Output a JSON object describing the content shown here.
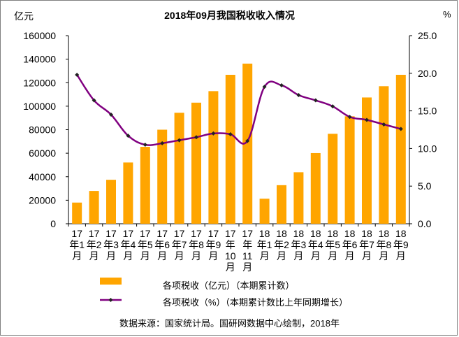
{
  "chart_data": {
    "type": "bar+line",
    "title": "2018年09月我国税收收入情况",
    "ylabel_left": "亿元",
    "ylabel_right": "%",
    "categories": [
      "17年1月",
      "17年2月",
      "17年3月",
      "17年4月",
      "17年5月",
      "17年6月",
      "17年7月",
      "17年8月",
      "17年9月",
      "17年10月",
      "17年11月",
      "18年1月",
      "18年2月",
      "18年3月",
      "18年4月",
      "18年5月",
      "18年6月",
      "18年7月",
      "18年8月",
      "18年9月"
    ],
    "category_labels": [
      [
        "17",
        "年1",
        "月"
      ],
      [
        "17",
        "年2",
        "月"
      ],
      [
        "17",
        "年3",
        "月"
      ],
      [
        "17",
        "年4",
        "月"
      ],
      [
        "17",
        "年5",
        "月"
      ],
      [
        "17",
        "年6",
        "月"
      ],
      [
        "17",
        "年7",
        "月"
      ],
      [
        "17",
        "年8",
        "月"
      ],
      [
        "17",
        "年9",
        "月"
      ],
      [
        "17",
        "年",
        "10",
        "月"
      ],
      [
        "17",
        "年",
        "11",
        "月"
      ],
      [
        "18",
        "年1",
        "月"
      ],
      [
        "18",
        "年2",
        "月"
      ],
      [
        "18",
        "年3",
        "月"
      ],
      [
        "18",
        "年4",
        "月"
      ],
      [
        "18",
        "年5",
        "月"
      ],
      [
        "18",
        "年6",
        "月"
      ],
      [
        "18",
        "年7",
        "月"
      ],
      [
        "18",
        "年8",
        "月"
      ],
      [
        "18",
        "年9",
        "月"
      ]
    ],
    "series": [
      {
        "name": "各项税收（亿元）（本期累计数）",
        "type": "bar",
        "axis": "left",
        "color": "#ffa500",
        "values": [
          18000,
          27900,
          37400,
          52100,
          65400,
          80000,
          94400,
          103000,
          112800,
          126700,
          136200,
          21300,
          32800,
          43800,
          60100,
          76500,
          91400,
          107400,
          117000,
          126700
        ]
      },
      {
        "name": "各项税收（%）（本期累计数比上年同期增长）",
        "type": "line",
        "axis": "right",
        "color": "#800080",
        "values": [
          19.8,
          16.4,
          14.5,
          11.7,
          10.5,
          10.7,
          11.1,
          11.5,
          12.0,
          11.9,
          11.0,
          18.2,
          18.4,
          17.1,
          16.4,
          15.6,
          14.2,
          13.8,
          13.2,
          12.6
        ]
      }
    ],
    "ylim_left": [
      0,
      160000
    ],
    "yticks_left": [
      "0",
      "20000",
      "40000",
      "60000",
      "80000",
      "100000",
      "120000",
      "140000",
      "160000"
    ],
    "ylim_right": [
      0,
      25
    ],
    "yticks_right": [
      "0.0",
      "5.0",
      "10.0",
      "15.0",
      "20.0",
      "25.0"
    ]
  },
  "legend": {
    "bar_label": "各项税收（亿元）（本期累计数）",
    "line_label": "各项税收（%）（本期累计数比上年同期增长）"
  },
  "source": "数据来源：国家统计局。国研网数据中心绘制，2018年"
}
